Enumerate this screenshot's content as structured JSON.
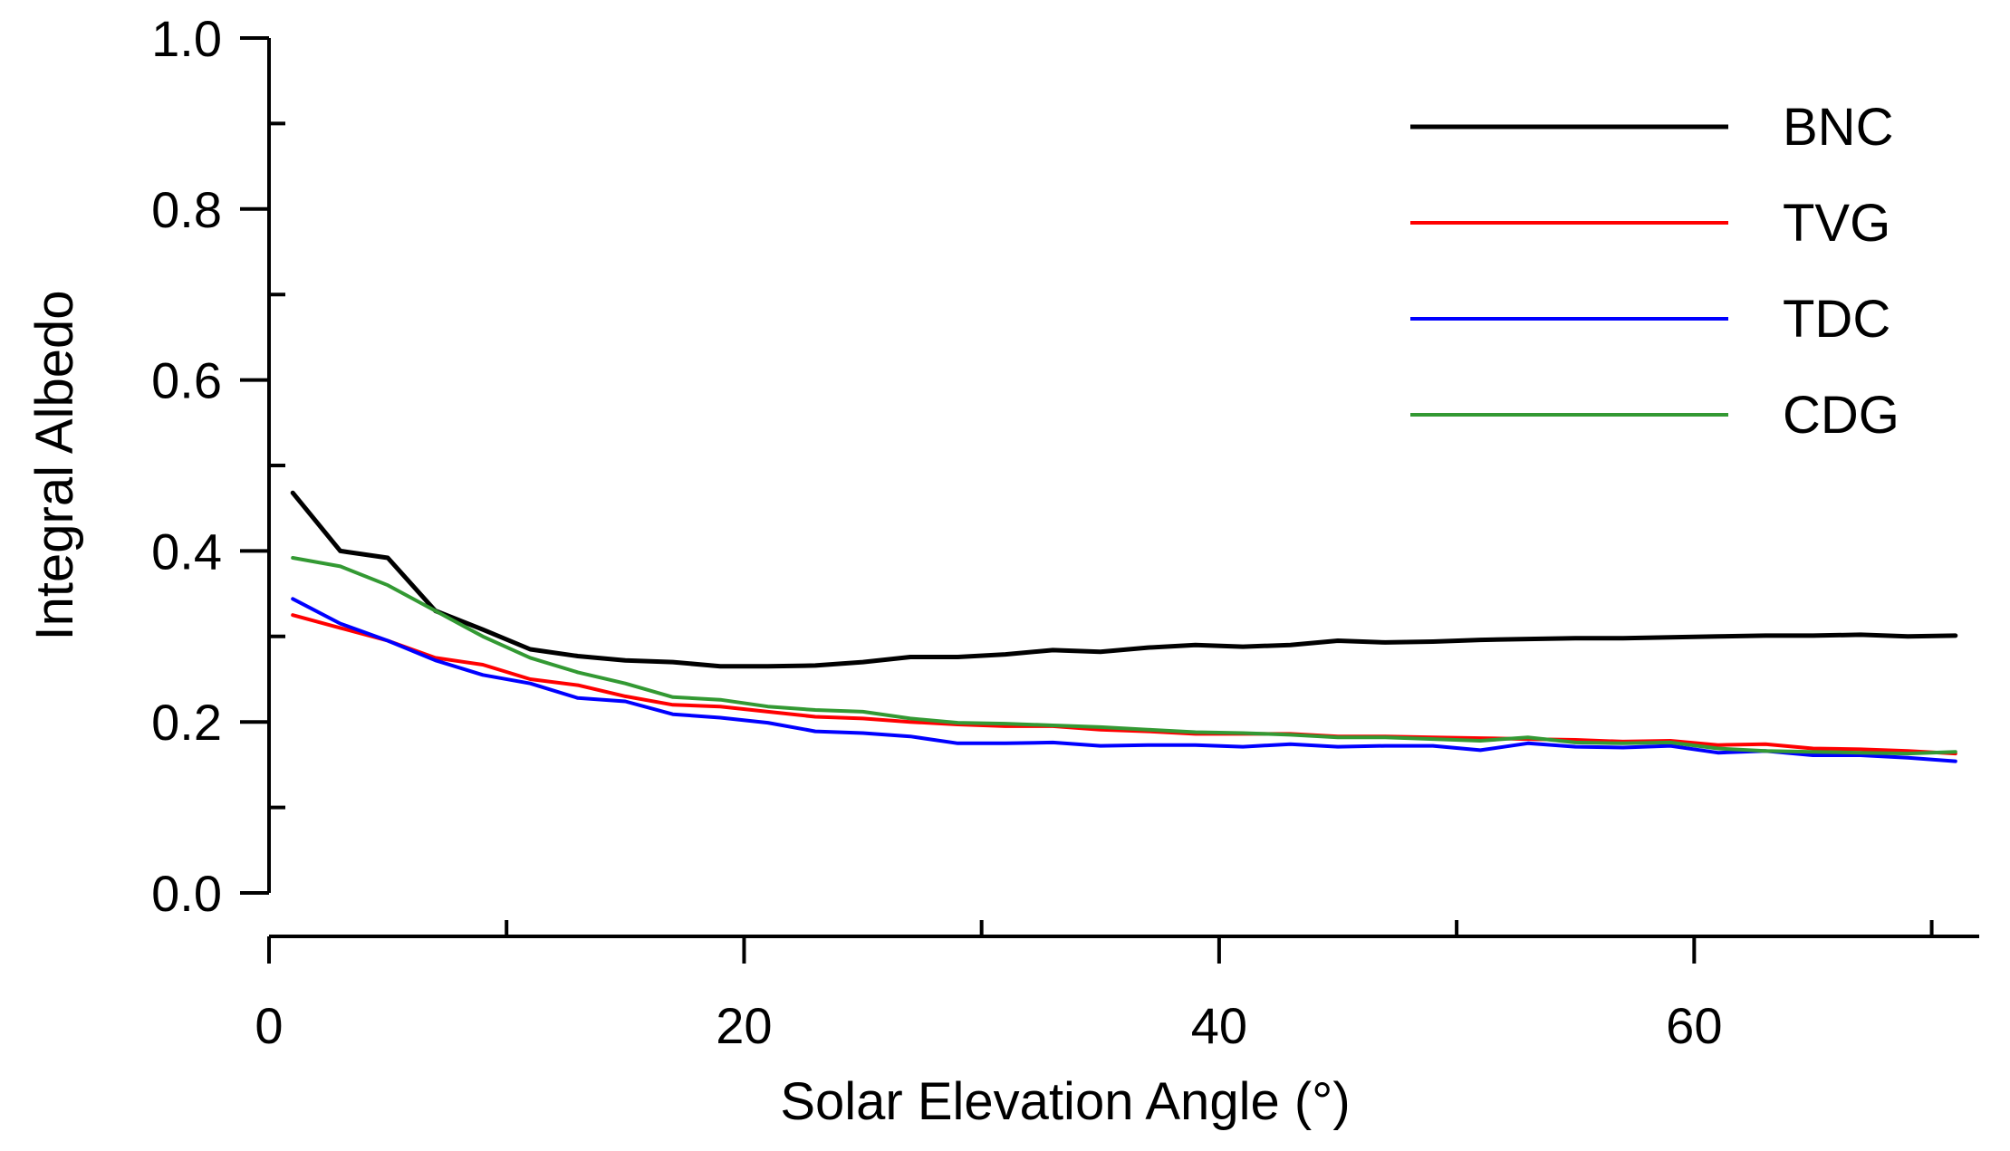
{
  "chart_data": {
    "type": "line",
    "title": "",
    "xlabel": "Solar Elevation Angle (°)",
    "ylabel": "Integral Albedo",
    "xlim": [
      0,
      72
    ],
    "ylim": [
      0,
      1.0
    ],
    "x_ticks": [
      0,
      20,
      40,
      60
    ],
    "x_tick_labels": [
      "0",
      "20",
      "40",
      "60"
    ],
    "x_minor_ticks": [
      10,
      30,
      50,
      70
    ],
    "y_ticks": [
      0,
      0.2,
      0.4,
      0.6,
      0.8,
      1.0
    ],
    "y_tick_labels": [
      "0.0",
      "0.2",
      "0.4",
      "0.6",
      "0.8",
      "1.0"
    ],
    "y_minor_ticks": [
      0.1,
      0.3,
      0.5,
      0.7,
      0.9
    ],
    "grid": false,
    "legend_position": "top-right",
    "x": [
      1,
      3,
      5,
      7,
      9,
      11,
      13,
      15,
      17,
      19,
      21,
      23,
      25,
      27,
      29,
      31,
      33,
      35,
      37,
      39,
      41,
      43,
      45,
      47,
      49,
      51,
      53,
      55,
      57,
      59,
      61,
      63,
      65,
      67,
      69,
      71
    ],
    "series": [
      {
        "name": "BNC",
        "color": "#000000",
        "values": [
          0.468,
          0.4,
          0.392,
          0.33,
          0.308,
          0.285,
          0.277,
          0.272,
          0.27,
          0.265,
          0.265,
          0.266,
          0.27,
          0.276,
          0.276,
          0.279,
          0.284,
          0.282,
          0.287,
          0.29,
          0.288,
          0.29,
          0.295,
          0.293,
          0.294,
          0.296,
          0.297,
          0.298,
          0.298,
          0.299,
          0.3,
          0.301,
          0.301,
          0.302,
          0.3,
          0.301
        ]
      },
      {
        "name": "TVG",
        "color": "#ff0000",
        "values": [
          0.325,
          0.31,
          0.295,
          0.275,
          0.267,
          0.25,
          0.243,
          0.23,
          0.22,
          0.218,
          0.212,
          0.206,
          0.204,
          0.2,
          0.197,
          0.195,
          0.195,
          0.191,
          0.189,
          0.186,
          0.186,
          0.186,
          0.183,
          0.183,
          0.182,
          0.181,
          0.18,
          0.179,
          0.177,
          0.178,
          0.173,
          0.174,
          0.169,
          0.168,
          0.166,
          0.163
        ]
      },
      {
        "name": "TDC",
        "color": "#0000ff",
        "values": [
          0.344,
          0.315,
          0.295,
          0.272,
          0.255,
          0.245,
          0.228,
          0.224,
          0.209,
          0.205,
          0.199,
          0.189,
          0.187,
          0.183,
          0.175,
          0.175,
          0.176,
          0.172,
          0.173,
          0.173,
          0.171,
          0.174,
          0.171,
          0.172,
          0.172,
          0.167,
          0.175,
          0.171,
          0.17,
          0.172,
          0.164,
          0.166,
          0.161,
          0.161,
          0.158,
          0.154
        ]
      },
      {
        "name": "CDG",
        "color": "#339933",
        "values": [
          0.392,
          0.382,
          0.36,
          0.33,
          0.3,
          0.275,
          0.258,
          0.245,
          0.229,
          0.226,
          0.218,
          0.214,
          0.212,
          0.204,
          0.199,
          0.198,
          0.196,
          0.194,
          0.191,
          0.188,
          0.187,
          0.185,
          0.182,
          0.182,
          0.18,
          0.178,
          0.182,
          0.176,
          0.175,
          0.176,
          0.169,
          0.166,
          0.165,
          0.164,
          0.163,
          0.165
        ]
      }
    ]
  }
}
